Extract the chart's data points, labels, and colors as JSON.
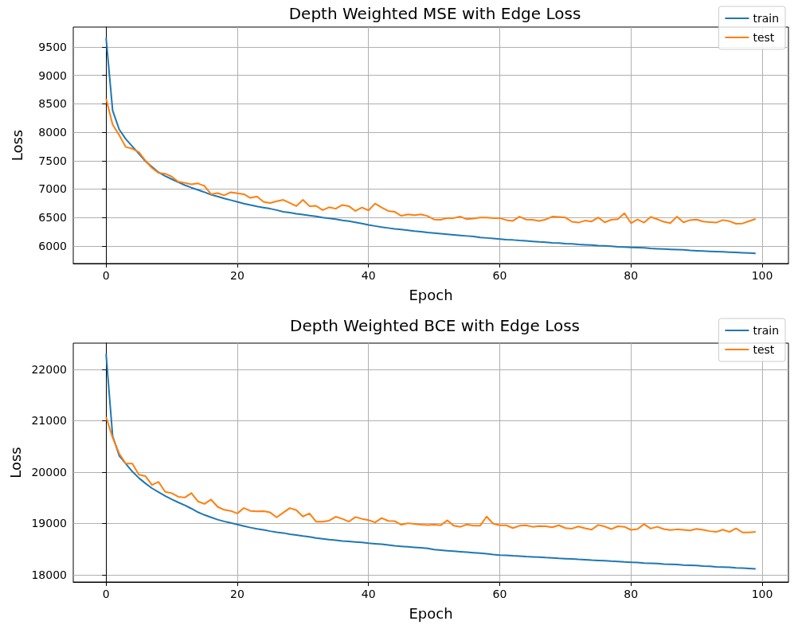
{
  "chart_data": [
    {
      "type": "line",
      "title": "Depth Weighted MSE with Edge Loss",
      "xlabel": "Epoch",
      "ylabel": "Loss",
      "x": [
        0,
        1,
        2,
        3,
        4,
        5,
        6,
        7,
        8,
        9,
        10,
        11,
        12,
        13,
        14,
        15,
        16,
        17,
        18,
        19,
        20,
        21,
        22,
        23,
        24,
        25,
        26,
        27,
        28,
        29,
        30,
        31,
        32,
        33,
        34,
        35,
        36,
        37,
        38,
        39,
        40,
        41,
        42,
        43,
        44,
        45,
        46,
        47,
        48,
        49,
        50,
        51,
        52,
        53,
        54,
        55,
        56,
        57,
        58,
        59,
        60,
        61,
        62,
        63,
        64,
        65,
        66,
        67,
        68,
        69,
        70,
        71,
        72,
        73,
        74,
        75,
        76,
        77,
        78,
        79,
        80,
        81,
        82,
        83,
        84,
        85,
        86,
        87,
        88,
        89,
        90,
        91,
        92,
        93,
        94,
        95,
        96,
        97,
        98,
        99
      ],
      "series": [
        {
          "name": "train",
          "color": "#1f77b4",
          "values": [
            9660,
            8380,
            8050,
            7880,
            7750,
            7620,
            7490,
            7390,
            7295,
            7230,
            7175,
            7120,
            7070,
            7025,
            6985,
            6945,
            6900,
            6870,
            6835,
            6805,
            6775,
            6745,
            6720,
            6695,
            6675,
            6655,
            6630,
            6600,
            6585,
            6565,
            6550,
            6535,
            6520,
            6500,
            6485,
            6470,
            6450,
            6435,
            6415,
            6395,
            6370,
            6350,
            6330,
            6315,
            6300,
            6290,
            6275,
            6260,
            6250,
            6235,
            6225,
            6215,
            6205,
            6195,
            6185,
            6175,
            6165,
            6150,
            6140,
            6130,
            6120,
            6110,
            6105,
            6095,
            6090,
            6080,
            6070,
            6065,
            6055,
            6050,
            6040,
            6035,
            6025,
            6020,
            6015,
            6005,
            6000,
            5995,
            5985,
            5980,
            5975,
            5970,
            5965,
            5955,
            5950,
            5945,
            5940,
            5935,
            5930,
            5920,
            5915,
            5910,
            5905,
            5900,
            5895,
            5890,
            5885,
            5880,
            5875,
            5870
          ]
        },
        {
          "name": "test",
          "color": "#ff7f0e",
          "values": [
            8590,
            8135,
            7950,
            7740,
            7710,
            7650,
            7500,
            7370,
            7285,
            7270,
            7220,
            7130,
            7110,
            7085,
            7100,
            7055,
            6910,
            6930,
            6890,
            6945,
            6925,
            6910,
            6845,
            6870,
            6775,
            6755,
            6785,
            6810,
            6755,
            6700,
            6810,
            6700,
            6705,
            6630,
            6680,
            6655,
            6720,
            6700,
            6615,
            6675,
            6625,
            6745,
            6675,
            6615,
            6600,
            6530,
            6555,
            6540,
            6555,
            6525,
            6465,
            6460,
            6490,
            6490,
            6515,
            6470,
            6480,
            6500,
            6500,
            6490,
            6490,
            6455,
            6440,
            6515,
            6465,
            6460,
            6440,
            6465,
            6515,
            6510,
            6500,
            6425,
            6410,
            6445,
            6430,
            6500,
            6415,
            6460,
            6470,
            6575,
            6400,
            6465,
            6410,
            6510,
            6470,
            6425,
            6400,
            6515,
            6415,
            6455,
            6465,
            6430,
            6420,
            6410,
            6455,
            6435,
            6390,
            6395,
            6435,
            6475
          ]
        }
      ],
      "xlim": [
        -5,
        104
      ],
      "xticks": [
        0,
        20,
        40,
        60,
        80,
        100
      ],
      "ylim": [
        5690,
        9850
      ],
      "yticks": [
        6000,
        6500,
        7000,
        7500,
        8000,
        8500,
        9000,
        9500
      ],
      "grid": true,
      "legend": "top right"
    },
    {
      "type": "line",
      "title": "Depth Weighted BCE with Edge Loss",
      "xlabel": "Epoch",
      "ylabel": "Loss",
      "x": [
        0,
        1,
        2,
        3,
        4,
        5,
        6,
        7,
        8,
        9,
        10,
        11,
        12,
        13,
        14,
        15,
        16,
        17,
        18,
        19,
        20,
        21,
        22,
        23,
        24,
        25,
        26,
        27,
        28,
        29,
        30,
        31,
        32,
        33,
        34,
        35,
        36,
        37,
        38,
        39,
        40,
        41,
        42,
        43,
        44,
        45,
        46,
        47,
        48,
        49,
        50,
        51,
        52,
        53,
        54,
        55,
        56,
        57,
        58,
        59,
        60,
        61,
        62,
        63,
        64,
        65,
        66,
        67,
        68,
        69,
        70,
        71,
        72,
        73,
        74,
        75,
        76,
        77,
        78,
        79,
        80,
        81,
        82,
        83,
        84,
        85,
        86,
        87,
        88,
        89,
        90,
        91,
        92,
        93,
        94,
        95,
        96,
        97,
        98,
        99
      ],
      "series": [
        {
          "name": "train",
          "color": "#1f77b4",
          "values": [
            22300,
            20700,
            20320,
            20165,
            20010,
            19885,
            19780,
            19685,
            19610,
            19535,
            19470,
            19410,
            19355,
            19290,
            19220,
            19165,
            19120,
            19075,
            19040,
            19010,
            18980,
            18950,
            18920,
            18895,
            18875,
            18850,
            18830,
            18815,
            18790,
            18775,
            18755,
            18740,
            18715,
            18700,
            18685,
            18675,
            18660,
            18650,
            18640,
            18630,
            18615,
            18605,
            18595,
            18580,
            18565,
            18555,
            18545,
            18535,
            18525,
            18515,
            18490,
            18480,
            18470,
            18460,
            18450,
            18440,
            18430,
            18420,
            18410,
            18395,
            18385,
            18380,
            18370,
            18365,
            18355,
            18350,
            18345,
            18335,
            18330,
            18320,
            18315,
            18310,
            18300,
            18295,
            18285,
            18280,
            18275,
            18265,
            18260,
            18250,
            18245,
            18240,
            18230,
            18225,
            18220,
            18210,
            18205,
            18200,
            18190,
            18185,
            18180,
            18170,
            18165,
            18155,
            18150,
            18145,
            18135,
            18130,
            18125,
            18115
          ]
        },
        {
          "name": "test",
          "color": "#ff7f0e",
          "values": [
            21070,
            20670,
            20360,
            20165,
            20165,
            19950,
            19920,
            19750,
            19810,
            19615,
            19590,
            19520,
            19505,
            19590,
            19430,
            19380,
            19465,
            19325,
            19265,
            19245,
            19195,
            19300,
            19245,
            19235,
            19240,
            19215,
            19120,
            19210,
            19300,
            19260,
            19135,
            19195,
            19035,
            19035,
            19055,
            19130,
            19090,
            19035,
            19125,
            19090,
            19065,
            19020,
            19105,
            19050,
            19045,
            18975,
            19005,
            18990,
            18975,
            18970,
            18975,
            18965,
            19060,
            18955,
            18935,
            18980,
            18955,
            18955,
            19135,
            18995,
            18965,
            18965,
            18910,
            18955,
            18965,
            18935,
            18950,
            18945,
            18925,
            18965,
            18910,
            18900,
            18940,
            18905,
            18880,
            18970,
            18940,
            18890,
            18945,
            18935,
            18875,
            18890,
            18985,
            18900,
            18935,
            18890,
            18870,
            18885,
            18875,
            18865,
            18895,
            18875,
            18850,
            18835,
            18880,
            18835,
            18905,
            18825,
            18825,
            18835
          ]
        }
      ],
      "xlim": [
        -5,
        104
      ],
      "xticks": [
        0,
        20,
        40,
        60,
        80,
        100
      ],
      "ylim": [
        17860,
        22510
      ],
      "yticks": [
        18000,
        19000,
        20000,
        21000,
        22000
      ],
      "grid": true,
      "legend": "top right"
    }
  ]
}
